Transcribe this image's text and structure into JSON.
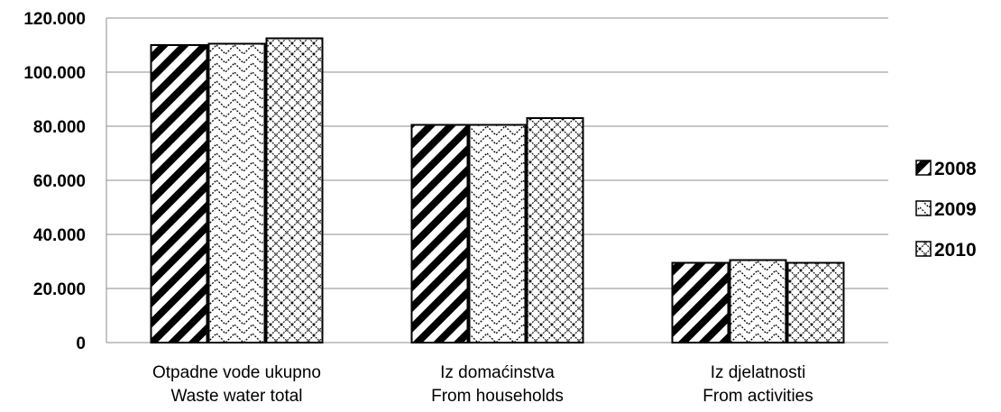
{
  "chart_data": {
    "type": "bar",
    "title": "",
    "xlabel": "",
    "ylabel": "",
    "ylim": [
      0,
      120000
    ],
    "yticks": [
      {
        "value": 0,
        "label": "0"
      },
      {
        "value": 20000,
        "label": "20.000"
      },
      {
        "value": 40000,
        "label": "40.000"
      },
      {
        "value": 60000,
        "label": "60.000"
      },
      {
        "value": 80000,
        "label": "80.000"
      },
      {
        "value": 100000,
        "label": "100.000"
      },
      {
        "value": 120000,
        "label": "120.000"
      }
    ],
    "categories": [
      {
        "line1": "Otpadne vode ukupno",
        "line2": "Waste water total"
      },
      {
        "line1": "Iz domaćinstva",
        "line2": "From households"
      },
      {
        "line1": "Iz djelatnosti",
        "line2": "From activities"
      }
    ],
    "series": [
      {
        "name": "2008",
        "pattern": "diagonal-stripes",
        "values": [
          110000,
          80500,
          29500
        ]
      },
      {
        "name": "2009",
        "pattern": "zigzag",
        "values": [
          110500,
          80500,
          30500
        ]
      },
      {
        "name": "2010",
        "pattern": "crosshatch",
        "values": [
          112500,
          83000,
          29500
        ]
      }
    ],
    "grid": true,
    "legend": "right",
    "colors": {
      "ink": "#000000",
      "grid": "#8c8c8c",
      "background": "#ffffff"
    }
  }
}
